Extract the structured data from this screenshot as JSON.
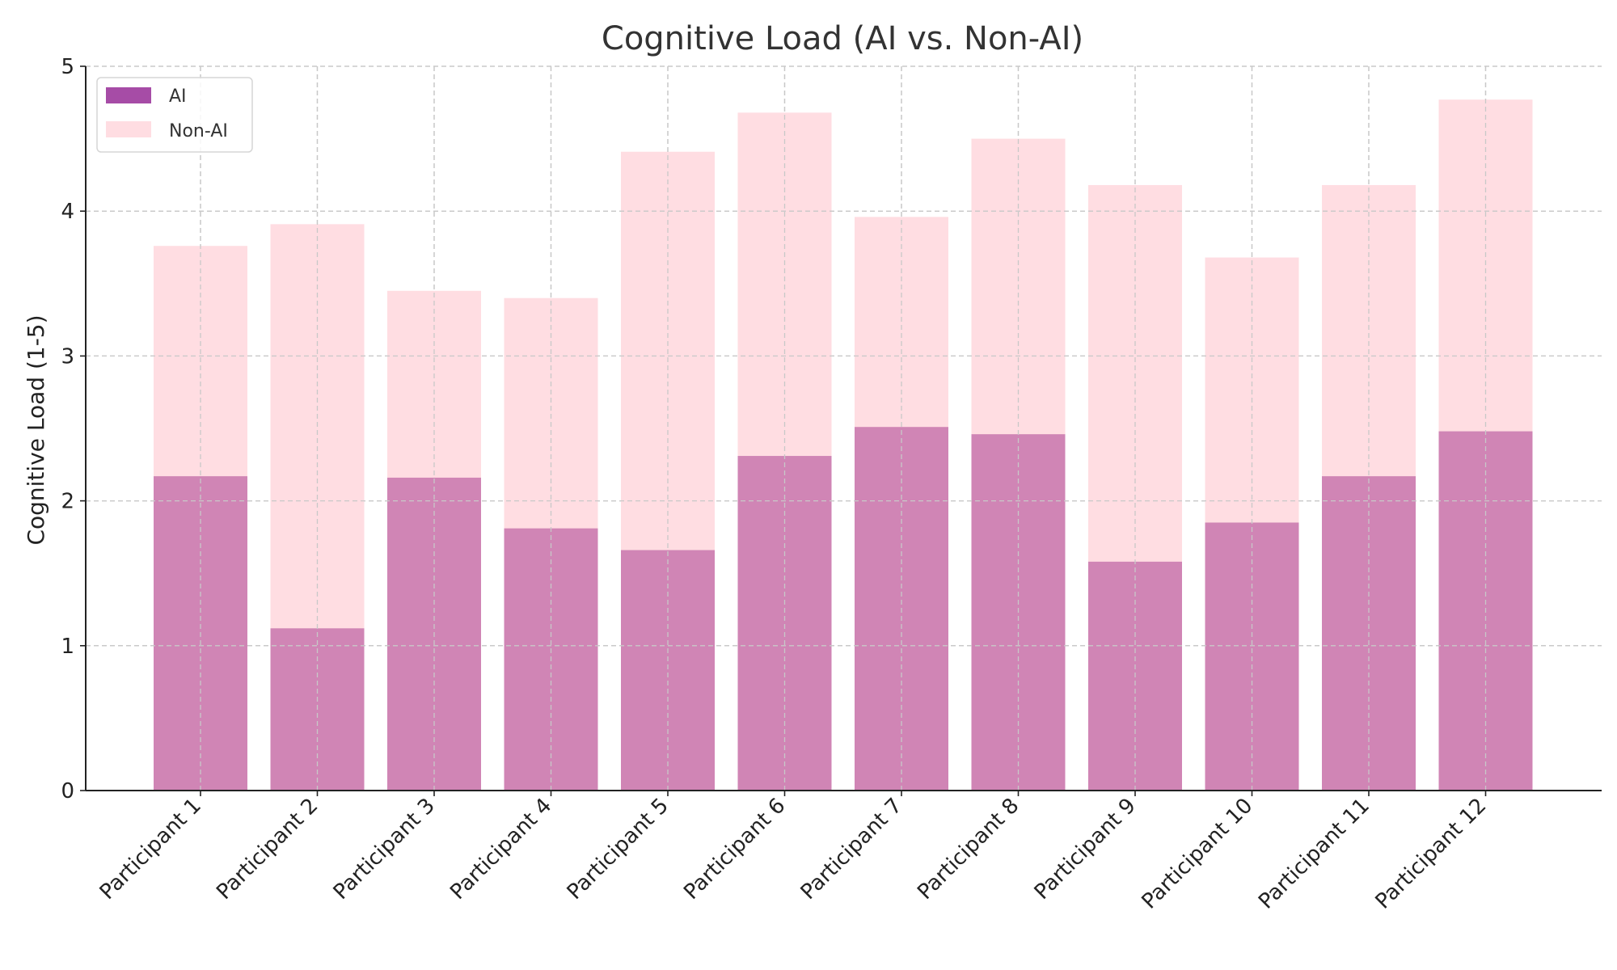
{
  "chart_data": {
    "type": "bar",
    "title": "Cognitive Load (AI vs. Non-AI)",
    "xlabel": "",
    "ylabel": "Cognitive Load (1-5)",
    "ylim": [
      0,
      5
    ],
    "yticks": [
      0,
      1,
      2,
      3,
      4,
      5
    ],
    "grid": true,
    "legend_position": "top-left",
    "categories": [
      "Participant 1",
      "Participant 2",
      "Participant 3",
      "Participant 4",
      "Participant 5",
      "Participant 6",
      "Participant 7",
      "Participant 8",
      "Participant 9",
      "Participant 10",
      "Participant 11",
      "Participant 12"
    ],
    "series": [
      {
        "name": "AI",
        "color": "#d085b5",
        "legend_color": "#a64ca6",
        "values": [
          2.17,
          1.12,
          2.16,
          1.81,
          1.66,
          2.31,
          2.51,
          2.46,
          1.58,
          1.85,
          2.17,
          2.48
        ]
      },
      {
        "name": "Non-AI",
        "color": "#ffdde2",
        "legend_color": "#ffdde2",
        "values": [
          3.76,
          3.91,
          3.45,
          3.4,
          4.41,
          4.68,
          3.96,
          4.5,
          4.18,
          3.68,
          4.18,
          4.77
        ]
      }
    ]
  }
}
